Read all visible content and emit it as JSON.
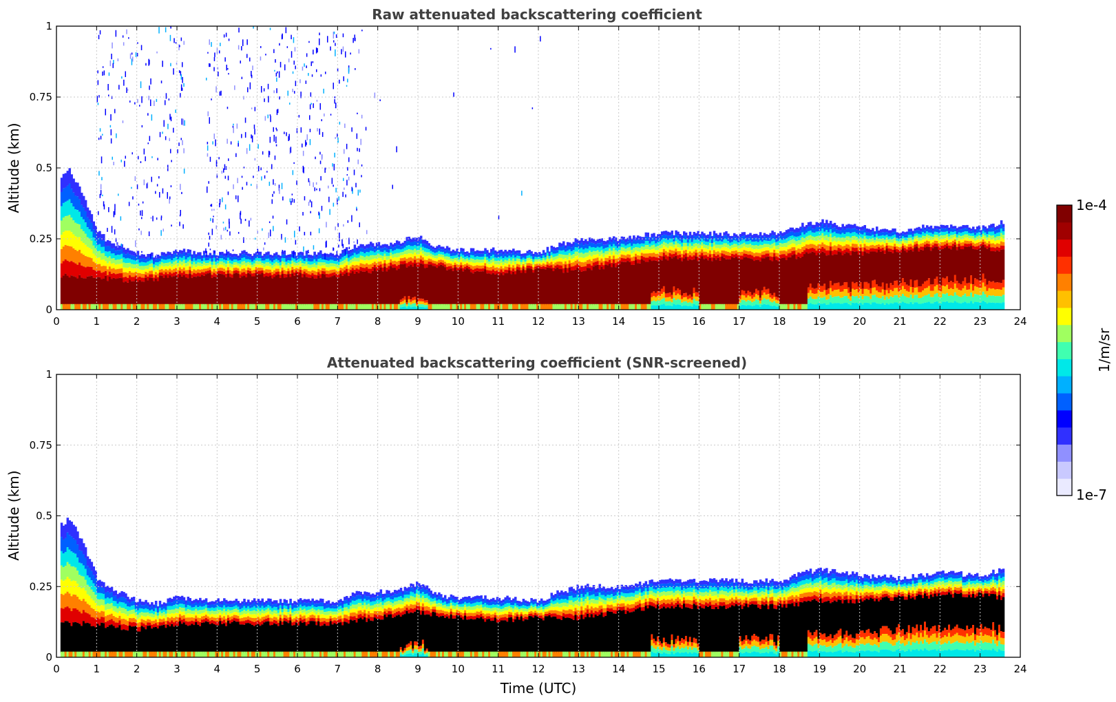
{
  "chart_data": [
    {
      "type": "heatmap",
      "title": "Raw attenuated backscattering coefficient",
      "xlabel": "",
      "ylabel": "Altitude (km)",
      "xlim": [
        0,
        24
      ],
      "ylim": [
        0,
        1
      ],
      "x_ticks": [
        "0",
        "1",
        "2",
        "3",
        "4",
        "5",
        "6",
        "7",
        "8",
        "9",
        "10",
        "11",
        "12",
        "13",
        "14",
        "15",
        "16",
        "17",
        "18",
        "19",
        "20",
        "21",
        "22",
        "23",
        "24"
      ],
      "y_ticks": [
        "0",
        "0.25",
        "0.5",
        "0.75",
        "1"
      ],
      "grid": true,
      "data_end_time": 23.6,
      "layer_top_km": [
        [
          0.1,
          0.47
        ],
        [
          0.3,
          0.49
        ],
        [
          0.55,
          0.43
        ],
        [
          0.8,
          0.35
        ],
        [
          1.0,
          0.28
        ],
        [
          1.2,
          0.25
        ],
        [
          1.5,
          0.23
        ],
        [
          2.0,
          0.2
        ],
        [
          2.5,
          0.19
        ],
        [
          3.0,
          0.21
        ],
        [
          3.5,
          0.2
        ],
        [
          4,
          0.2
        ],
        [
          5,
          0.2
        ],
        [
          6,
          0.2
        ],
        [
          7,
          0.2
        ],
        [
          7.5,
          0.23
        ],
        [
          8,
          0.23
        ],
        [
          8.5,
          0.24
        ],
        [
          9,
          0.26
        ],
        [
          9.5,
          0.22
        ],
        [
          10,
          0.21
        ],
        [
          11,
          0.21
        ],
        [
          12,
          0.2
        ],
        [
          12.5,
          0.23
        ],
        [
          13,
          0.25
        ],
        [
          14,
          0.25
        ],
        [
          15,
          0.27
        ],
        [
          16,
          0.27
        ],
        [
          17,
          0.27
        ],
        [
          18,
          0.27
        ],
        [
          18.6,
          0.3
        ],
        [
          19,
          0.31
        ],
        [
          19.5,
          0.3
        ],
        [
          20,
          0.29
        ],
        [
          21,
          0.28
        ],
        [
          22,
          0.3
        ],
        [
          23,
          0.29
        ],
        [
          23.6,
          0.31
        ]
      ],
      "layer_base_km": [
        [
          0.55,
          0.12
        ],
        [
          2,
          0.1
        ],
        [
          3,
          0.12
        ],
        [
          4,
          0.12
        ],
        [
          5,
          0.12
        ],
        [
          6,
          0.12
        ],
        [
          7,
          0.12
        ],
        [
          8,
          0.14
        ],
        [
          9,
          0.16
        ],
        [
          10,
          0.14
        ],
        [
          11,
          0.13
        ],
        [
          12,
          0.14
        ],
        [
          13,
          0.14
        ],
        [
          14,
          0.16
        ],
        [
          15,
          0.18
        ],
        [
          16,
          0.18
        ],
        [
          17,
          0.18
        ],
        [
          18,
          0.18
        ],
        [
          19,
          0.2
        ],
        [
          20,
          0.2
        ],
        [
          21,
          0.21
        ],
        [
          22,
          0.22
        ],
        [
          23,
          0.22
        ],
        [
          23.6,
          0.21
        ]
      ],
      "weak_near_surface_hours": [
        [
          8.5,
          9.2
        ],
        [
          14.8,
          16
        ],
        [
          17,
          18
        ],
        [
          18.7,
          23.6
        ]
      ]
    },
    {
      "type": "heatmap",
      "title": "Attenuated backscattering coefficient (SNR-screened)",
      "xlabel": "Time (UTC)",
      "ylabel": "Altitude (km)",
      "xlim": [
        0,
        24
      ],
      "ylim": [
        0,
        1
      ],
      "x_ticks": [
        "0",
        "1",
        "2",
        "3",
        "4",
        "5",
        "6",
        "7",
        "8",
        "9",
        "10",
        "11",
        "12",
        "13",
        "14",
        "15",
        "16",
        "17",
        "18",
        "19",
        "20",
        "21",
        "22",
        "23",
        "24"
      ],
      "y_ticks": [
        "0",
        "0.25",
        "0.5",
        "0.75",
        "1"
      ],
      "grid": true,
      "saturated_color": "#000000"
    }
  ],
  "colorbar": {
    "label": "1/m/sr",
    "max_label": "1e-4",
    "min_label": "1e-7",
    "scale": "log",
    "colors": [
      "#eaeaff",
      "#c9c9ff",
      "#9090ff",
      "#3030ff",
      "#0000ff",
      "#0060ff",
      "#00b0ff",
      "#00e8e8",
      "#40ffb0",
      "#a0ff60",
      "#ffff00",
      "#ffc000",
      "#ff8000",
      "#ff3000",
      "#e00000",
      "#a00000",
      "#800000"
    ]
  }
}
